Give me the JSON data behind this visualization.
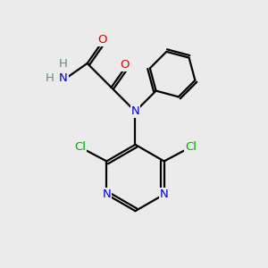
{
  "bg_color": "#ebebeb",
  "atom_colors": {
    "C": "#000000",
    "N": "#0000cc",
    "O": "#dd0000",
    "Cl": "#00aa00",
    "H": "#708090"
  },
  "figsize": [
    3.0,
    3.0
  ],
  "dpi": 100
}
